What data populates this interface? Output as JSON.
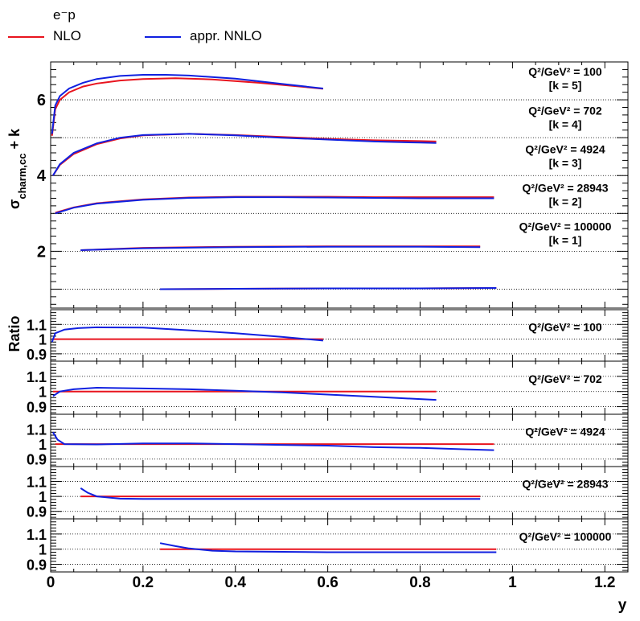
{
  "legend": {
    "header": "e⁻p",
    "entries": [
      {
        "label": "NLO",
        "color": "#e8141e"
      },
      {
        "label": "appr. NNLO",
        "color": "#1020e0"
      }
    ]
  },
  "chart_data": {
    "type": "line",
    "xlabel": "y",
    "x_ticks": [
      "0",
      "0.2",
      "0.4",
      "0.6",
      "0.8",
      "1",
      "1.2"
    ],
    "xlim": [
      0,
      1.25
    ],
    "top_panel": {
      "ylabel": "σ⁻ charm,cc + k",
      "ylim": [
        0.5,
        7.0
      ],
      "y_ticks": [
        "2",
        "4",
        "6"
      ],
      "grid_y": [
        1,
        2,
        3,
        4,
        5,
        6
      ],
      "sets": [
        {
          "label": "Q²/GeV² = 100",
          "k": "[k = 5]",
          "nlo": [
            [
              0.003,
              5.05
            ],
            [
              0.01,
              5.75
            ],
            [
              0.02,
              6.0
            ],
            [
              0.04,
              6.2
            ],
            [
              0.07,
              6.35
            ],
            [
              0.1,
              6.43
            ],
            [
              0.15,
              6.51
            ],
            [
              0.2,
              6.55
            ],
            [
              0.27,
              6.57
            ],
            [
              0.35,
              6.54
            ],
            [
              0.45,
              6.45
            ],
            [
              0.55,
              6.34
            ],
            [
              0.59,
              6.29
            ]
          ],
          "nnlo": [
            [
              0.003,
              5.1
            ],
            [
              0.01,
              5.85
            ],
            [
              0.02,
              6.1
            ],
            [
              0.04,
              6.3
            ],
            [
              0.07,
              6.45
            ],
            [
              0.1,
              6.55
            ],
            [
              0.15,
              6.63
            ],
            [
              0.2,
              6.66
            ],
            [
              0.25,
              6.66
            ],
            [
              0.3,
              6.64
            ],
            [
              0.4,
              6.56
            ],
            [
              0.5,
              6.42
            ],
            [
              0.59,
              6.3
            ]
          ]
        },
        {
          "label": "Q²/GeV² = 702",
          "k": "[k = 4]",
          "nlo": [
            [
              0.005,
              4.0
            ],
            [
              0.02,
              4.28
            ],
            [
              0.05,
              4.57
            ],
            [
              0.1,
              4.83
            ],
            [
              0.15,
              4.98
            ],
            [
              0.2,
              5.06
            ],
            [
              0.3,
              5.1
            ],
            [
              0.4,
              5.07
            ],
            [
              0.5,
              5.02
            ],
            [
              0.6,
              4.97
            ],
            [
              0.7,
              4.93
            ],
            [
              0.8,
              4.91
            ],
            [
              0.835,
              4.9
            ]
          ],
          "nnlo": [
            [
              0.005,
              4.0
            ],
            [
              0.02,
              4.3
            ],
            [
              0.05,
              4.6
            ],
            [
              0.1,
              4.85
            ],
            [
              0.15,
              5.0
            ],
            [
              0.2,
              5.07
            ],
            [
              0.3,
              5.1
            ],
            [
              0.4,
              5.06
            ],
            [
              0.5,
              5.0
            ],
            [
              0.6,
              4.95
            ],
            [
              0.7,
              4.9
            ],
            [
              0.8,
              4.87
            ],
            [
              0.835,
              4.86
            ]
          ]
        },
        {
          "label": "Q²/GeV² = 4924",
          "k": "[k = 3]",
          "nlo": [
            [
              0.01,
              3.02
            ],
            [
              0.05,
              3.16
            ],
            [
              0.1,
              3.27
            ],
            [
              0.2,
              3.37
            ],
            [
              0.3,
              3.42
            ],
            [
              0.4,
              3.44
            ],
            [
              0.5,
              3.44
            ],
            [
              0.6,
              3.44
            ],
            [
              0.7,
              3.43
            ],
            [
              0.8,
              3.43
            ],
            [
              0.9,
              3.43
            ],
            [
              0.96,
              3.43
            ]
          ],
          "nnlo": [
            [
              0.01,
              3.0
            ],
            [
              0.05,
              3.15
            ],
            [
              0.1,
              3.26
            ],
            [
              0.2,
              3.36
            ],
            [
              0.3,
              3.41
            ],
            [
              0.4,
              3.43
            ],
            [
              0.5,
              3.43
            ],
            [
              0.6,
              3.42
            ],
            [
              0.7,
              3.41
            ],
            [
              0.8,
              3.4
            ],
            [
              0.9,
              3.4
            ],
            [
              0.96,
              3.4
            ]
          ]
        },
        {
          "label": "Q²/GeV² = 28943",
          "k": "[k = 2]",
          "nlo": [
            [
              0.065,
              2.03
            ],
            [
              0.2,
              2.09
            ],
            [
              0.4,
              2.12
            ],
            [
              0.6,
              2.13
            ],
            [
              0.8,
              2.13
            ],
            [
              0.93,
              2.13
            ]
          ],
          "nnlo": [
            [
              0.065,
              2.03
            ],
            [
              0.2,
              2.08
            ],
            [
              0.4,
              2.11
            ],
            [
              0.6,
              2.12
            ],
            [
              0.8,
              2.12
            ],
            [
              0.93,
              2.11
            ]
          ]
        },
        {
          "label": "Q²/GeV² = 100000",
          "k": "[k = 1]",
          "nlo": [
            [
              0.237,
              1.0
            ],
            [
              0.4,
              1.01
            ],
            [
              0.6,
              1.02
            ],
            [
              0.8,
              1.02
            ],
            [
              0.965,
              1.03
            ]
          ],
          "nnlo": [
            [
              0.237,
              1.0
            ],
            [
              0.4,
              1.01
            ],
            [
              0.6,
              1.02
            ],
            [
              0.8,
              1.02
            ],
            [
              0.965,
              1.03
            ]
          ]
        }
      ]
    },
    "ratio_panels": {
      "ylabel": "Ratio",
      "ylim": [
        0.85,
        1.2
      ],
      "y_ticks": [
        "0.9",
        "1",
        "1.1"
      ],
      "grid_y": [
        0.9,
        1.0,
        1.1
      ],
      "panels": [
        {
          "label": "Q²/GeV² = 100",
          "nlo": [
            [
              0.003,
              1.0
            ],
            [
              0.59,
              1.0
            ]
          ],
          "nnlo": [
            [
              0.003,
              0.98
            ],
            [
              0.01,
              1.04
            ],
            [
              0.03,
              1.065
            ],
            [
              0.06,
              1.075
            ],
            [
              0.1,
              1.08
            ],
            [
              0.2,
              1.078
            ],
            [
              0.3,
              1.06
            ],
            [
              0.4,
              1.04
            ],
            [
              0.5,
              1.015
            ],
            [
              0.59,
              0.99
            ]
          ]
        },
        {
          "label": "Q²/GeV² = 702",
          "nlo": [
            [
              0.005,
              1.0
            ],
            [
              0.835,
              1.0
            ]
          ],
          "nnlo": [
            [
              0.005,
              0.97
            ],
            [
              0.02,
              1.0
            ],
            [
              0.05,
              1.015
            ],
            [
              0.1,
              1.025
            ],
            [
              0.2,
              1.02
            ],
            [
              0.3,
              1.015
            ],
            [
              0.4,
              1.005
            ],
            [
              0.5,
              0.995
            ],
            [
              0.6,
              0.98
            ],
            [
              0.7,
              0.965
            ],
            [
              0.8,
              0.95
            ],
            [
              0.835,
              0.945
            ]
          ]
        },
        {
          "label": "Q²/GeV² = 4924",
          "nlo": [
            [
              0.01,
              1.0
            ],
            [
              0.96,
              1.0
            ]
          ],
          "nnlo": [
            [
              0.005,
              1.08
            ],
            [
              0.015,
              1.03
            ],
            [
              0.03,
              1.0
            ],
            [
              0.1,
              0.998
            ],
            [
              0.2,
              1.005
            ],
            [
              0.3,
              1.005
            ],
            [
              0.4,
              1.0
            ],
            [
              0.5,
              0.995
            ],
            [
              0.6,
              0.99
            ],
            [
              0.7,
              0.98
            ],
            [
              0.8,
              0.975
            ],
            [
              0.9,
              0.965
            ],
            [
              0.96,
              0.96
            ]
          ]
        },
        {
          "label": "Q²/GeV² = 28943",
          "nlo": [
            [
              0.065,
              1.0
            ],
            [
              0.93,
              1.0
            ]
          ],
          "nnlo": [
            [
              0.065,
              1.055
            ],
            [
              0.08,
              1.025
            ],
            [
              0.1,
              1.0
            ],
            [
              0.15,
              0.985
            ],
            [
              0.2,
              0.983
            ],
            [
              0.4,
              0.983
            ],
            [
              0.6,
              0.983
            ],
            [
              0.8,
              0.983
            ],
            [
              0.93,
              0.983
            ]
          ]
        },
        {
          "label": "Q²/GeV² = 100000",
          "nlo": [
            [
              0.237,
              1.0
            ],
            [
              0.965,
              1.0
            ]
          ],
          "nnlo": [
            [
              0.237,
              1.04
            ],
            [
              0.27,
              1.02
            ],
            [
              0.3,
              1.005
            ],
            [
              0.35,
              0.99
            ],
            [
              0.4,
              0.985
            ],
            [
              0.6,
              0.98
            ],
            [
              0.8,
              0.98
            ],
            [
              0.965,
              0.98
            ]
          ]
        }
      ]
    }
  }
}
